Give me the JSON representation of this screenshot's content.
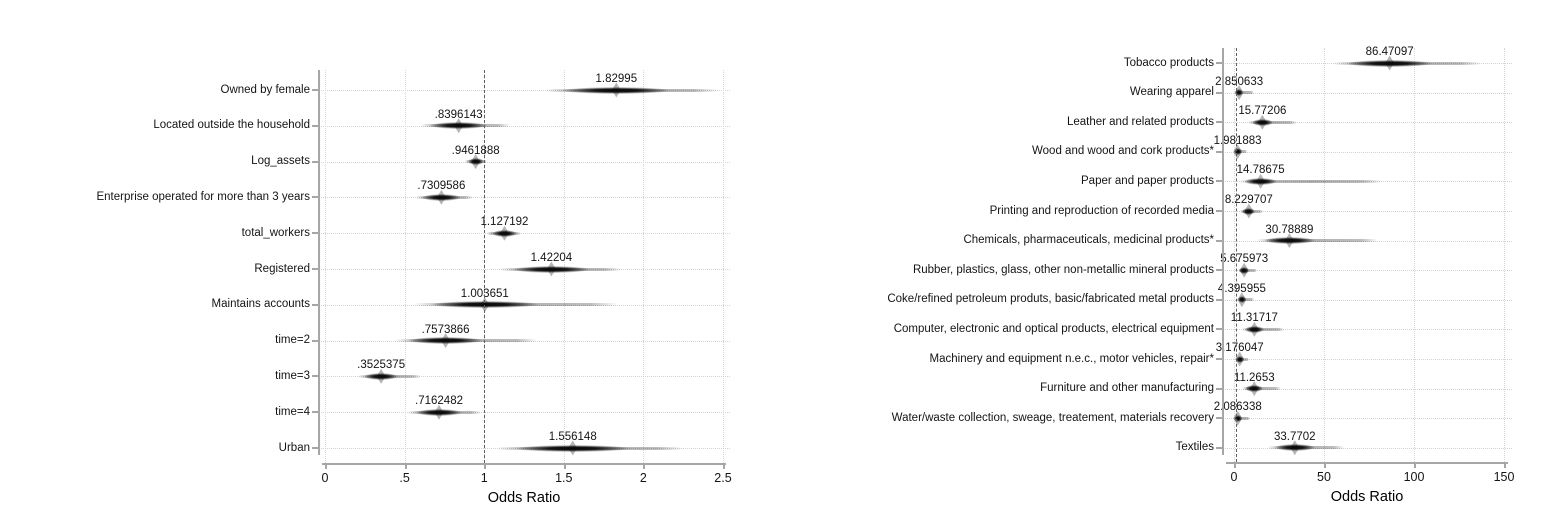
{
  "colors": {
    "background": "#ffffff",
    "marker": "#1a1a1a",
    "axis_line": "#a6a6a6",
    "grid_dotted": "#d2d2d2",
    "reference_line_dashed": "#5f5f5f",
    "text": "#141414"
  },
  "chart_data": [
    {
      "type": "scatter",
      "subtype": "forest-plot-odds-ratios",
      "title": "",
      "xlabel": "Odds Ratio",
      "ylabel": "",
      "xlim": [
        0,
        2.5
      ],
      "reference_line_x": 1,
      "grid": "dotted",
      "legend": "none",
      "x_ticks": [
        {
          "value": 0,
          "label": "0"
        },
        {
          "value": 0.5,
          "label": ".5"
        },
        {
          "value": 1,
          "label": "1"
        },
        {
          "value": 1.5,
          "label": "1.5"
        },
        {
          "value": 2,
          "label": "2"
        },
        {
          "value": 2.5,
          "label": "2.5"
        }
      ],
      "rows": [
        {
          "label": "Owned by female",
          "value_label": "1.82995",
          "estimate": 1.82995,
          "ci_low": 1.38,
          "ci_high": 2.47
        },
        {
          "label": "Located outside the household",
          "value_label": ".8396143",
          "estimate": 0.8396143,
          "ci_low": 0.6,
          "ci_high": 1.16
        },
        {
          "label": "Log_assets",
          "value_label": ".9461888",
          "estimate": 0.9461888,
          "ci_low": 0.88,
          "ci_high": 1.02
        },
        {
          "label": "Enterprise operated for more than 3 years",
          "value_label": ".7309586",
          "estimate": 0.7309586,
          "ci_low": 0.57,
          "ci_high": 0.93
        },
        {
          "label": "total_workers",
          "value_label": "1.127192",
          "estimate": 1.127192,
          "ci_low": 1.02,
          "ci_high": 1.23
        },
        {
          "label": "Registered",
          "value_label": "1.42204",
          "estimate": 1.42204,
          "ci_low": 1.1,
          "ci_high": 1.86
        },
        {
          "label": "Maintains accounts",
          "value_label": "1.003651",
          "estimate": 1.003651,
          "ci_low": 0.55,
          "ci_high": 1.84
        },
        {
          "label": "time=2",
          "value_label": ".7573866",
          "estimate": 0.7573866,
          "ci_low": 0.44,
          "ci_high": 1.33
        },
        {
          "label": "time=3",
          "value_label": ".3525375",
          "estimate": 0.3525375,
          "ci_low": 0.21,
          "ci_high": 0.6
        },
        {
          "label": "time=4",
          "value_label": ".7162482",
          "estimate": 0.7162482,
          "ci_low": 0.52,
          "ci_high": 0.98
        },
        {
          "label": "Urban",
          "value_label": "1.556148",
          "estimate": 1.556148,
          "ci_low": 1.08,
          "ci_high": 2.25
        }
      ]
    },
    {
      "type": "scatter",
      "subtype": "forest-plot-odds-ratios",
      "title": "",
      "xlabel": "Odds Ratio",
      "ylabel": "",
      "xlim": [
        0,
        150
      ],
      "reference_line_x": 1,
      "grid": "dotted",
      "legend": "none",
      "x_ticks": [
        {
          "value": 0,
          "label": "0"
        },
        {
          "value": 50,
          "label": "50"
        },
        {
          "value": 100,
          "label": "100"
        },
        {
          "value": 150,
          "label": "150"
        }
      ],
      "rows": [
        {
          "label": "Tobacco products",
          "value_label": "86.47097",
          "estimate": 86.47097,
          "ci_low": 55,
          "ci_high": 137
        },
        {
          "label": "Wearing apparel",
          "value_label": "2.850633",
          "estimate": 2.850633,
          "ci_low": 0.8,
          "ci_high": 11
        },
        {
          "label": "Leather and related products",
          "value_label": "15.77206",
          "estimate": 15.77206,
          "ci_low": 8,
          "ci_high": 35
        },
        {
          "label": "Wood and wood and cork products*",
          "value_label": "1.981883",
          "estimate": 1.981883,
          "ci_low": 0.5,
          "ci_high": 7
        },
        {
          "label": "Paper and paper products",
          "value_label": "14.78675",
          "estimate": 14.78675,
          "ci_low": 2.5,
          "ci_high": 82
        },
        {
          "label": "Printing and reproduction of recorded media",
          "value_label": "8.229707",
          "estimate": 8.229707,
          "ci_low": 3.5,
          "ci_high": 16
        },
        {
          "label": "Chemicals, pharmaceuticals, medicinal products*",
          "value_label": "30.78889",
          "estimate": 30.78889,
          "ci_low": 12,
          "ci_high": 80
        },
        {
          "label": "Rubber, plastics, glass, other non-metallic mineral products",
          "value_label": "5.675973",
          "estimate": 5.675973,
          "ci_low": 2,
          "ci_high": 13
        },
        {
          "label": "Coke/refined petroleum produts, basic/fabricated metal products",
          "value_label": "4.395955",
          "estimate": 4.395955,
          "ci_low": 1.5,
          "ci_high": 11
        },
        {
          "label": "Computer, electronic and optical products, electrical equipment",
          "value_label": "11.31717",
          "estimate": 11.31717,
          "ci_low": 4.5,
          "ci_high": 28
        },
        {
          "label": "Machinery and equipment n.e.c., motor vehicles, repair*",
          "value_label": "3.176047",
          "estimate": 3.176047,
          "ci_low": 1.1,
          "ci_high": 8.5
        },
        {
          "label": "Furniture and other manufacturing",
          "value_label": "11.2653",
          "estimate": 11.2653,
          "ci_low": 4.5,
          "ci_high": 26
        },
        {
          "label": "Water/waste collection, sweage, treatement, materials recovery",
          "value_label": "2.086338",
          "estimate": 2.086338,
          "ci_low": 0.6,
          "ci_high": 9
        },
        {
          "label": "Textiles",
          "value_label": "33.7702",
          "estimate": 33.7702,
          "ci_low": 19,
          "ci_high": 61
        }
      ]
    }
  ]
}
